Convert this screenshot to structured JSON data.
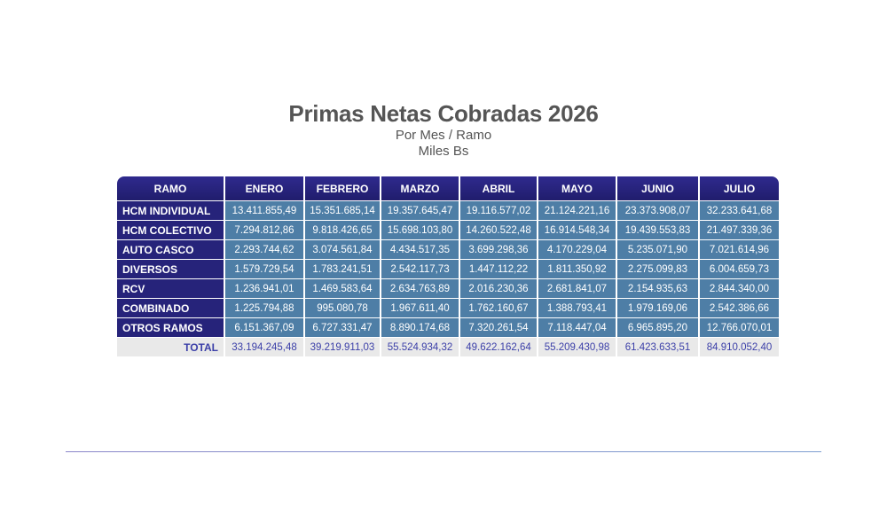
{
  "heading": {
    "title": "Primas Netas Cobradas 2026",
    "subtitle": "Por Mes / Ramo",
    "units": "Miles Bs"
  },
  "table": {
    "headers": [
      "RAMO",
      "ENERO",
      "FEBRERO",
      "MARZO",
      "ABRIL",
      "MAYO",
      "JUNIO",
      "JULIO"
    ],
    "rows": [
      {
        "ramo": "HCM INDIVIDUAL",
        "values": [
          "13.411.855,49",
          "15.351.685,14",
          "19.357.645,47",
          "19.116.577,02",
          "21.124.221,16",
          "23.373.908,07",
          "32.233.641,68"
        ]
      },
      {
        "ramo": "HCM COLECTIVO",
        "values": [
          "7.294.812,86",
          "9.818.426,65",
          "15.698.103,80",
          "14.260.522,48",
          "16.914.548,34",
          "19.439.553,83",
          "21.497.339,36"
        ]
      },
      {
        "ramo": "AUTO CASCO",
        "values": [
          "2.293.744,62",
          "3.074.561,84",
          "4.434.517,35",
          "3.699.298,36",
          "4.170.229,04",
          "5.235.071,90",
          "7.021.614,96"
        ]
      },
      {
        "ramo": "DIVERSOS",
        "values": [
          "1.579.729,54",
          "1.783.241,51",
          "2.542.117,73",
          "1.447.112,22",
          "1.811.350,92",
          "2.275.099,83",
          "6.004.659,73"
        ]
      },
      {
        "ramo": "RCV",
        "values": [
          "1.236.941,01",
          "1.469.583,64",
          "2.634.763,89",
          "2.016.230,36",
          "2.681.841,07",
          "2.154.935,63",
          "2.844.340,00"
        ]
      },
      {
        "ramo": "COMBINADO",
        "values": [
          "1.225.794,88",
          "995.080,78",
          "1.967.611,40",
          "1.762.160,67",
          "1.388.793,41",
          "1.979.169,06",
          "2.542.386,66"
        ]
      },
      {
        "ramo": "OTROS RAMOS",
        "values": [
          "6.151.367,09",
          "6.727.331,47",
          "8.890.174,68",
          "7.320.261,54",
          "7.118.447,04",
          "6.965.895,20",
          "12.766.070,01"
        ]
      }
    ],
    "total": {
      "ramo": "TOTAL",
      "values": [
        "33.194.245,48",
        "39.219.911,03",
        "55.524.934,32",
        "49.622.162,64",
        "55.209.430,98",
        "61.423.633,51",
        "84.910.052,40"
      ]
    }
  }
}
